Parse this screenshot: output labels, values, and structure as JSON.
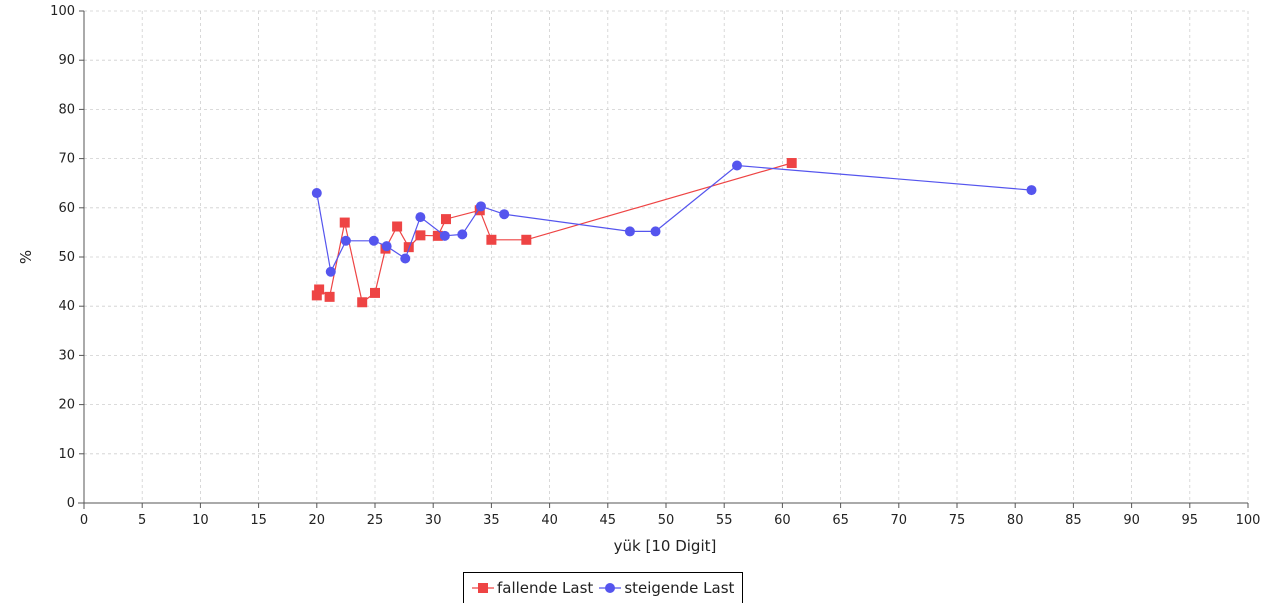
{
  "chart_data": {
    "type": "line",
    "title": "",
    "xlabel": "yük [10 Digit]",
    "ylabel": "%",
    "xlim": [
      0,
      100
    ],
    "ylim": [
      0,
      100
    ],
    "xticks": [
      0,
      5,
      10,
      15,
      20,
      25,
      30,
      35,
      40,
      45,
      50,
      55,
      60,
      65,
      70,
      75,
      80,
      85,
      90,
      95,
      100
    ],
    "yticks": [
      0,
      10,
      20,
      30,
      40,
      50,
      60,
      70,
      80,
      90,
      100
    ],
    "grid": true,
    "legend_position": "bottom-center",
    "series": [
      {
        "name": "fallende Last",
        "color": "#ee4444",
        "marker": "square",
        "points": [
          [
            60.8,
            69.1
          ],
          [
            38.0,
            53.5
          ],
          [
            35.0,
            53.5
          ],
          [
            34.0,
            59.5
          ],
          [
            31.1,
            57.7
          ],
          [
            30.4,
            54.3
          ],
          [
            28.9,
            54.4
          ],
          [
            27.9,
            52.0
          ],
          [
            26.9,
            56.2
          ],
          [
            25.9,
            51.7
          ],
          [
            25.0,
            42.7
          ],
          [
            23.9,
            40.8
          ],
          [
            22.4,
            57.0
          ],
          [
            21.1,
            41.9
          ],
          [
            20.2,
            43.4
          ],
          [
            20.0,
            42.2
          ]
        ]
      },
      {
        "name": "steigende Last",
        "color": "#5555ee",
        "marker": "circle",
        "points": [
          [
            20.0,
            63.0
          ],
          [
            21.2,
            47.0
          ],
          [
            22.5,
            53.3
          ],
          [
            24.9,
            53.3
          ],
          [
            26.0,
            52.2
          ],
          [
            27.6,
            49.7
          ],
          [
            28.9,
            58.1
          ],
          [
            31.0,
            54.3
          ],
          [
            32.5,
            54.6
          ],
          [
            34.1,
            60.3
          ],
          [
            36.1,
            58.7
          ],
          [
            46.9,
            55.2
          ],
          [
            49.1,
            55.2
          ],
          [
            56.1,
            68.6
          ],
          [
            81.4,
            63.6
          ]
        ]
      }
    ]
  }
}
